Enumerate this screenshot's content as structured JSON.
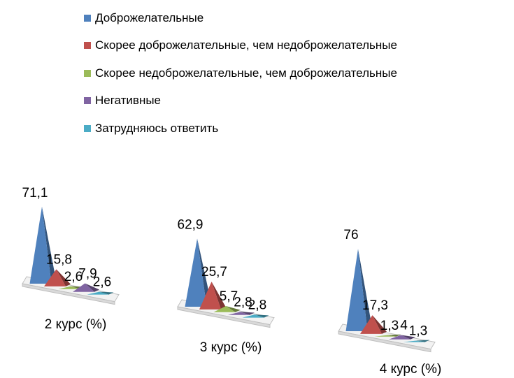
{
  "chart_data": {
    "type": "bar",
    "style": "3d-pyramid",
    "categories": [
      "2 курс (%)",
      "3 курс (%)",
      "4 курс (%)"
    ],
    "series": [
      {
        "name": "Доброжелательные",
        "color": "#4F81BD",
        "values": [
          71.1,
          62.9,
          76
        ]
      },
      {
        "name": "Скорее доброжелательные, чем недоброжелательные",
        "color": "#C0504D",
        "values": [
          15.8,
          25.7,
          17.3
        ]
      },
      {
        "name": "Скорее недоброжелательные, чем доброжелательные",
        "color": "#9BBB59",
        "values": [
          2.6,
          5.7,
          1.3
        ]
      },
      {
        "name": "Негативные",
        "color": "#8064A2",
        "values": [
          7.9,
          2.8,
          4
        ]
      },
      {
        "name": "Затрудняюсь ответить",
        "color": "#4BACC6",
        "values": [
          2.6,
          2.8,
          1.3
        ]
      }
    ],
    "data_labels": [
      [
        "71,1",
        "15,8",
        "2,6",
        "7,9",
        "2,6"
      ],
      [
        "62,9",
        "25,7",
        "5,7",
        "2,8",
        "2,8"
      ],
      [
        "76",
        "17,3",
        "1,3",
        "4",
        "1,3"
      ]
    ],
    "legend_position": "top",
    "grid": false
  }
}
